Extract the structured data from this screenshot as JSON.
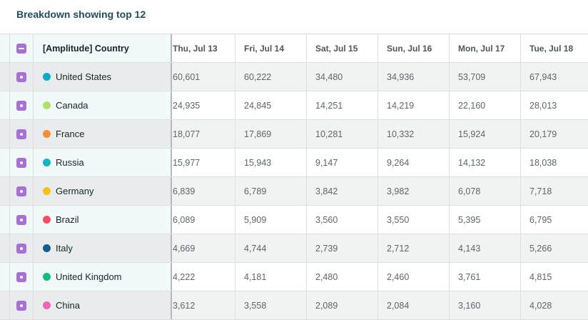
{
  "title": "Breakdown showing top 12",
  "header": {
    "name": "[Amplitude] Country",
    "columns": [
      "Thu, Jul 13",
      "Fri, Jul 14",
      "Sat, Jul 15",
      "Sun, Jul 16",
      "Mon, Jul 17",
      "Tue, Jul 18"
    ]
  },
  "rows": [
    {
      "name": "United States",
      "color": "#0aabc6",
      "values": [
        "60,601",
        "60,222",
        "34,480",
        "34,936",
        "53,709",
        "67,943"
      ]
    },
    {
      "name": "Canada",
      "color": "#b3e06a",
      "values": [
        "24,935",
        "24,845",
        "14,251",
        "14,219",
        "22,160",
        "28,013"
      ]
    },
    {
      "name": "France",
      "color": "#f98e2c",
      "values": [
        "18,077",
        "17,869",
        "10,281",
        "10,332",
        "15,924",
        "20,179"
      ]
    },
    {
      "name": "Russia",
      "color": "#13b5bf",
      "values": [
        "15,977",
        "15,943",
        "9,147",
        "9,264",
        "14,132",
        "18,038"
      ]
    },
    {
      "name": "Germany",
      "color": "#fbbf0f",
      "values": [
        "6,839",
        "6,789",
        "3,842",
        "3,982",
        "6,078",
        "7,718"
      ]
    },
    {
      "name": "Brazil",
      "color": "#f5505f",
      "values": [
        "6,089",
        "5,909",
        "3,560",
        "3,550",
        "5,395",
        "6,795"
      ]
    },
    {
      "name": "Italy",
      "color": "#125f8c",
      "values": [
        "4,669",
        "4,744",
        "2,739",
        "2,712",
        "4,143",
        "5,266"
      ]
    },
    {
      "name": "United Kingdom",
      "color": "#0dbf7a",
      "values": [
        "4,222",
        "4,181",
        "2,480",
        "2,460",
        "3,761",
        "4,815"
      ]
    },
    {
      "name": "China",
      "color": "#f064b4",
      "values": [
        "3,612",
        "3,558",
        "2,089",
        "2,084",
        "3,160",
        "4,028"
      ]
    }
  ]
}
